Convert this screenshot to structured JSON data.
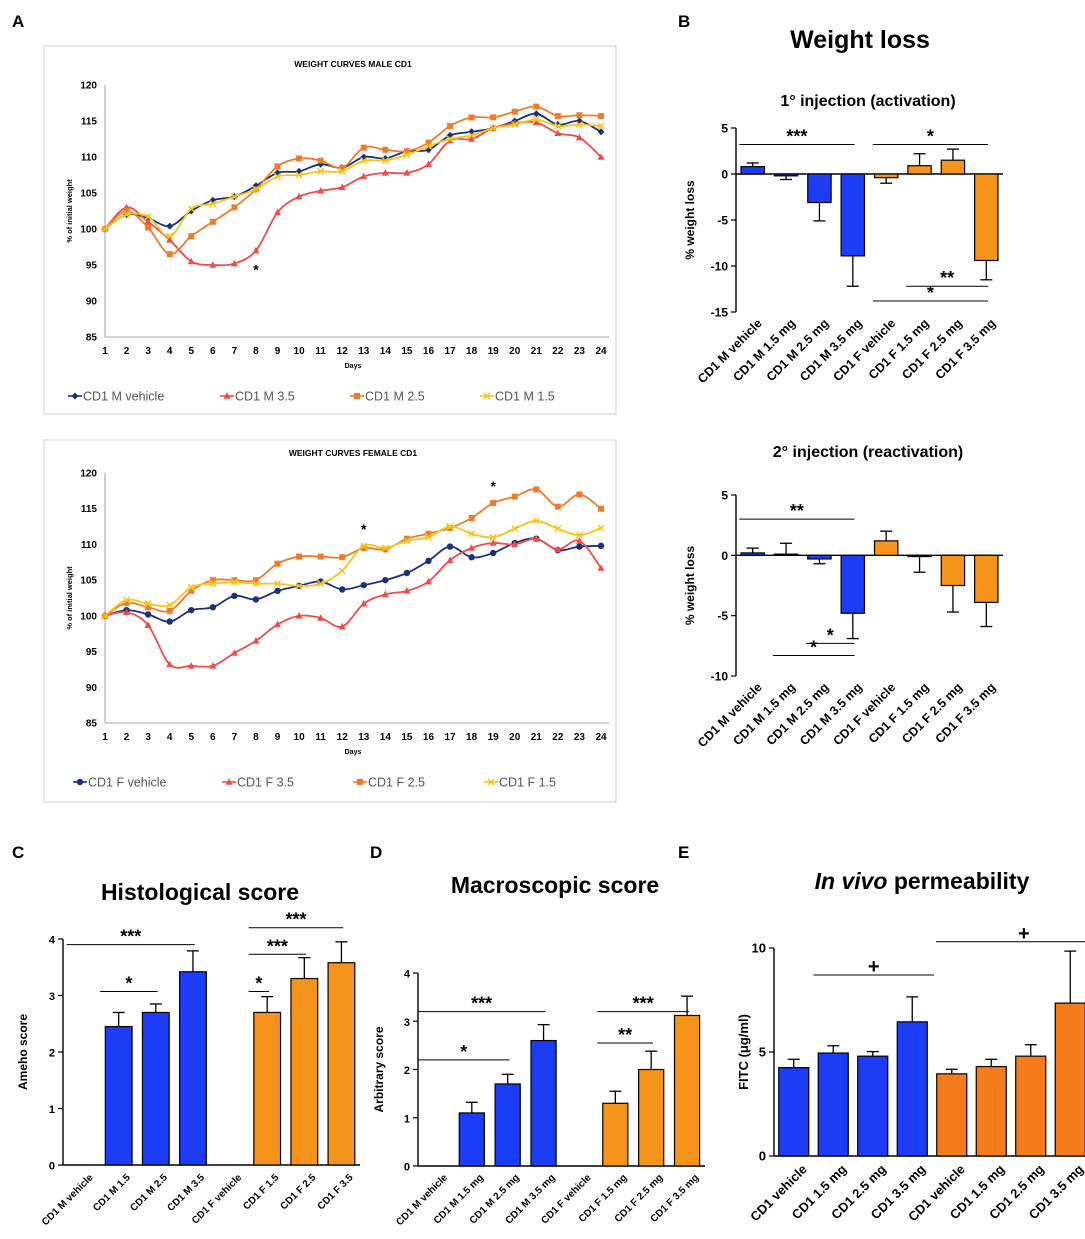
{
  "panel_labels": [
    "A",
    "B",
    "C",
    "D",
    "E"
  ],
  "colors": {
    "vehicle_m": "#1c2f7a",
    "m35": "#ee4b4b",
    "m25": "#ee7b2c",
    "m15": "#f5c518",
    "bar_blue": "#1d3cf5",
    "bar_orange": "#f5931a",
    "perm_orange": "#f57c1a",
    "err_line": "#aaaaaa"
  },
  "b_main_title": "Weight loss",
  "chart_data": [
    {
      "id": "a_top",
      "type": "line",
      "title": "WEIGHT CURVES MALE CD1",
      "xlabel": "Days",
      "ylabel": "% of initial weight",
      "x": [
        1,
        2,
        3,
        4,
        5,
        6,
        7,
        8,
        9,
        10,
        11,
        12,
        13,
        14,
        15,
        16,
        17,
        18,
        19,
        20,
        21,
        22,
        23,
        24
      ],
      "ylim": [
        85,
        120
      ],
      "yticks": [
        85,
        90,
        95,
        100,
        105,
        110,
        115,
        120
      ],
      "grid": "none",
      "legend_position": "bottom",
      "series": [
        {
          "name": "CD1 M vehicle",
          "marker": "diamond",
          "color": "#1c2f7a",
          "values": [
            100,
            102,
            101.5,
            100.4,
            102.5,
            104,
            104.5,
            106,
            107.8,
            108,
            109,
            108.5,
            110,
            109.8,
            110.8,
            111,
            113,
            113.5,
            114,
            115,
            116,
            114.5,
            115,
            113.5
          ]
        },
        {
          "name": "CD1 M  3.5",
          "marker": "triangle",
          "color": "#ee4b4b",
          "values": [
            100,
            103,
            101,
            98.5,
            95.5,
            95,
            95.2,
            97,
            102.3,
            104.5,
            105.3,
            105.8,
            107.3,
            107.8,
            107.8,
            109,
            112.3,
            112.5,
            114,
            114.7,
            114.8,
            113.3,
            112.7,
            110
          ]
        },
        {
          "name": "CD1 M  2.5",
          "marker": "square",
          "color": "#ee7b2c",
          "values": [
            100,
            102.5,
            100.2,
            96.5,
            99,
            101,
            103,
            105.5,
            108.7,
            109.8,
            109.5,
            108.5,
            111.3,
            111,
            110.8,
            112,
            114.3,
            115.5,
            115.5,
            116.3,
            117,
            115.7,
            115.8,
            115.7
          ]
        },
        {
          "name": "CD1 M  1.5",
          "marker": "cross",
          "color": "#f5c518",
          "values": [
            100,
            102,
            101.7,
            99,
            102.8,
            103.5,
            104.5,
            105.5,
            107.3,
            107.5,
            108,
            108,
            109.5,
            109.5,
            110.3,
            111.5,
            112.5,
            113,
            114,
            114.5,
            115.2,
            114.3,
            114.5,
            114.3
          ]
        }
      ],
      "annotations": [
        {
          "text": "*",
          "x": 8
        }
      ]
    },
    {
      "id": "a_bottom",
      "type": "line",
      "title": "WEIGHT CURVES FEMALE CD1",
      "xlabel": "Days",
      "ylabel": "% of initial weight",
      "x": [
        1,
        2,
        3,
        4,
        5,
        6,
        7,
        8,
        9,
        10,
        11,
        12,
        13,
        14,
        15,
        16,
        17,
        18,
        19,
        20,
        21,
        22,
        23,
        24
      ],
      "ylim": [
        85,
        120
      ],
      "yticks": [
        85,
        90,
        95,
        100,
        105,
        110,
        115,
        120
      ],
      "grid": "none",
      "legend_position": "bottom",
      "series": [
        {
          "name": "CD1 F vehicle",
          "marker": "circle",
          "color": "#1c2f7a",
          "values": [
            100,
            100.8,
            100.2,
            99.2,
            100.8,
            101.2,
            102.8,
            102.3,
            103.5,
            104.2,
            104.8,
            103.7,
            104.3,
            105,
            106,
            107.7,
            109.7,
            108.2,
            108.8,
            110.2,
            110.8,
            109.2,
            109.7,
            109.8
          ]
        },
        {
          "name": "CD1 F  3.5",
          "marker": "triangle",
          "color": "#ee4b4b",
          "values": [
            100,
            100.5,
            98.7,
            93.2,
            93,
            93,
            94.8,
            96.5,
            98.8,
            100,
            99.7,
            98.5,
            101.7,
            103,
            103.5,
            104.8,
            107.8,
            109.5,
            110.2,
            110,
            110.8,
            109.3,
            110.5,
            106.7
          ]
        },
        {
          "name": "CD1 F  2.5",
          "marker": "square",
          "color": "#ee7b2c",
          "values": [
            100,
            101.8,
            101.2,
            100.7,
            103.5,
            105,
            105,
            105,
            107.3,
            108.3,
            108.3,
            108.2,
            109.5,
            109.3,
            110.8,
            111.5,
            112.3,
            113.7,
            115.8,
            116.7,
            117.7,
            115.3,
            117,
            115
          ]
        },
        {
          "name": "CD1 F  1.5",
          "marker": "cross",
          "color": "#f5c518",
          "values": [
            100,
            102.2,
            101.7,
            101.5,
            104,
            104.5,
            104.7,
            104.5,
            104.5,
            104.2,
            104.5,
            106.3,
            109.8,
            109.5,
            110.5,
            111,
            112.5,
            111.5,
            111,
            112.2,
            113.3,
            112.2,
            111.3,
            112.3
          ]
        }
      ],
      "annotations": [
        {
          "text": "*",
          "x": 13
        },
        {
          "text": "*",
          "x": 19
        }
      ]
    },
    {
      "id": "b_top",
      "type": "bar",
      "title": "1° injection (activation)",
      "ylabel": "% weight loss",
      "categories": [
        "CD1 M vehicle",
        "CD1 M 1.5 mg",
        "CD1 M 2.5 mg",
        "CD1 M 3.5 mg",
        "CD1 F vehicle",
        "CD1 F 1.5 mg",
        "CD1 F 2.5 mg",
        "CD1 F 3.5 mg"
      ],
      "values": [
        0.8,
        -0.2,
        -3.1,
        -8.9,
        -0.4,
        0.9,
        1.5,
        -9.4
      ],
      "errors": [
        0.4,
        0.4,
        2,
        3.3,
        0.6,
        1.3,
        1.2,
        2.1
      ],
      "ylim": [
        -15,
        5
      ],
      "yticks": [
        5,
        0,
        -5,
        -10,
        -15
      ],
      "significance": [
        {
          "text": "***",
          "from": 0,
          "to": 3,
          "y": 3.2
        },
        {
          "text": "*",
          "from": 4,
          "to": 7,
          "y": 3.2
        },
        {
          "text": "**",
          "from": 5,
          "to": 7,
          "y": -12.2
        },
        {
          "text": "*",
          "from": 4,
          "to": 7,
          "y": -13.8
        }
      ]
    },
    {
      "id": "b_bottom",
      "type": "bar",
      "title": "2° injection (reactivation)",
      "ylabel": "% weight loss",
      "categories": [
        "CD1 M vehicle",
        "CD1 M 1.5 mg",
        "CD1 M 2.5 mg",
        "CD1 M 3.5 mg",
        "CD1 F vehicle",
        "CD1 F 1.5 mg",
        "CD1 F 2.5 mg",
        "CD1 F 3.5 mg"
      ],
      "values": [
        0.2,
        0.1,
        -0.3,
        -4.8,
        1.2,
        -0.1,
        -2.5,
        -3.9
      ],
      "errors": [
        0.4,
        0.9,
        0.4,
        2.1,
        0.8,
        1.3,
        2.2,
        2
      ],
      "ylim": [
        -10,
        5
      ],
      "yticks": [
        5,
        0,
        -5,
        -10
      ],
      "significance": [
        {
          "text": "**",
          "from": 0,
          "to": 3,
          "y": 3
        },
        {
          "text": "*",
          "from": 2,
          "to": 3,
          "y": -7.3
        },
        {
          "text": "*",
          "from": 1,
          "to": 3,
          "y": -8.3
        }
      ]
    },
    {
      "id": "c",
      "type": "bar",
      "title": "Histological score",
      "ylabel": "Ameho score",
      "categories": [
        "CD1 M vehicle",
        "CD1 M 1.5",
        "CD1 M 2.5",
        "CD1 M 3.5",
        "CD1 F vehicle",
        "CD1 F 1.5",
        "CD1 F 2.5",
        "CD1 F 3.5"
      ],
      "values": [
        0,
        2.45,
        2.7,
        3.42,
        0,
        2.7,
        3.3,
        3.58
      ],
      "errors": [
        0,
        0.25,
        0.15,
        0.37,
        0,
        0.28,
        0.37,
        0.37
      ],
      "ylim": [
        0,
        4
      ],
      "yticks": [
        0,
        1,
        2,
        3,
        4
      ],
      "significance": [
        {
          "text": "*",
          "from": 0.5,
          "to": 2,
          "y": 3.07
        },
        {
          "text": "***",
          "from": 0,
          "to": 3,
          "y": 3.9
        },
        {
          "text": "*",
          "from": 4.5,
          "to": 5,
          "y": 3.07
        },
        {
          "text": "***",
          "from": 4.5,
          "to": 6,
          "y": 3.73
        },
        {
          "text": "***",
          "from": 4.5,
          "to": 7,
          "y": 4.2
        }
      ]
    },
    {
      "id": "d",
      "type": "bar",
      "title": "Macroscopic score",
      "ylabel": "Arbitrary score",
      "categories": [
        "CD1 M vehicle",
        "CD1 M 1.5 mg",
        "CD1 M 2.5 mg",
        "CD1 M 3.5 mg",
        "CD1 F vehicle",
        "CD1 F 1.5 mg",
        "CD1 F 2.5 mg",
        "CD1 F 3.5 mg"
      ],
      "values": [
        0,
        1.1,
        1.7,
        2.6,
        0,
        1.3,
        2,
        3.12
      ],
      "errors": [
        0,
        0.22,
        0.2,
        0.33,
        0,
        0.25,
        0.38,
        0.4
      ],
      "ylim": [
        0,
        4
      ],
      "yticks": [
        0,
        1,
        2,
        3,
        4
      ],
      "significance": [
        {
          "text": "*",
          "from": -0.5,
          "to": 2,
          "y": 2.2
        },
        {
          "text": "***",
          "from": -0.5,
          "to": 3,
          "y": 3.2
        },
        {
          "text": "**",
          "from": 4.5,
          "to": 6,
          "y": 2.55
        },
        {
          "text": "***",
          "from": 4.5,
          "to": 7,
          "y": 3.2
        }
      ]
    },
    {
      "id": "e",
      "type": "bar",
      "title_italic": "In vivo",
      "title": "permeability",
      "ylabel": "FITC (μg/ml)",
      "categories": [
        "CD1 vehicle",
        "CD1 1.5 mg",
        "CD1 2.5 mg",
        "CD1 3.5 mg",
        "CD1 vehicle",
        "CD1 1.5 mg",
        "CD1 2.5 mg",
        "CD1 3.5 mg"
      ],
      "values": [
        4.25,
        4.95,
        4.8,
        6.45,
        3.95,
        4.3,
        4.8,
        7.35
      ],
      "errors": [
        0.4,
        0.35,
        0.22,
        1.2,
        0.22,
        0.35,
        0.55,
        2.5
      ],
      "ylim": [
        0,
        10
      ],
      "yticks": [
        0,
        5,
        10
      ],
      "significance": [
        {
          "text": "+",
          "from": 0.5,
          "to": 3.5,
          "y": 8.7
        },
        {
          "text": "+",
          "from": 4,
          "to": 8,
          "y": 10.3
        }
      ]
    }
  ]
}
